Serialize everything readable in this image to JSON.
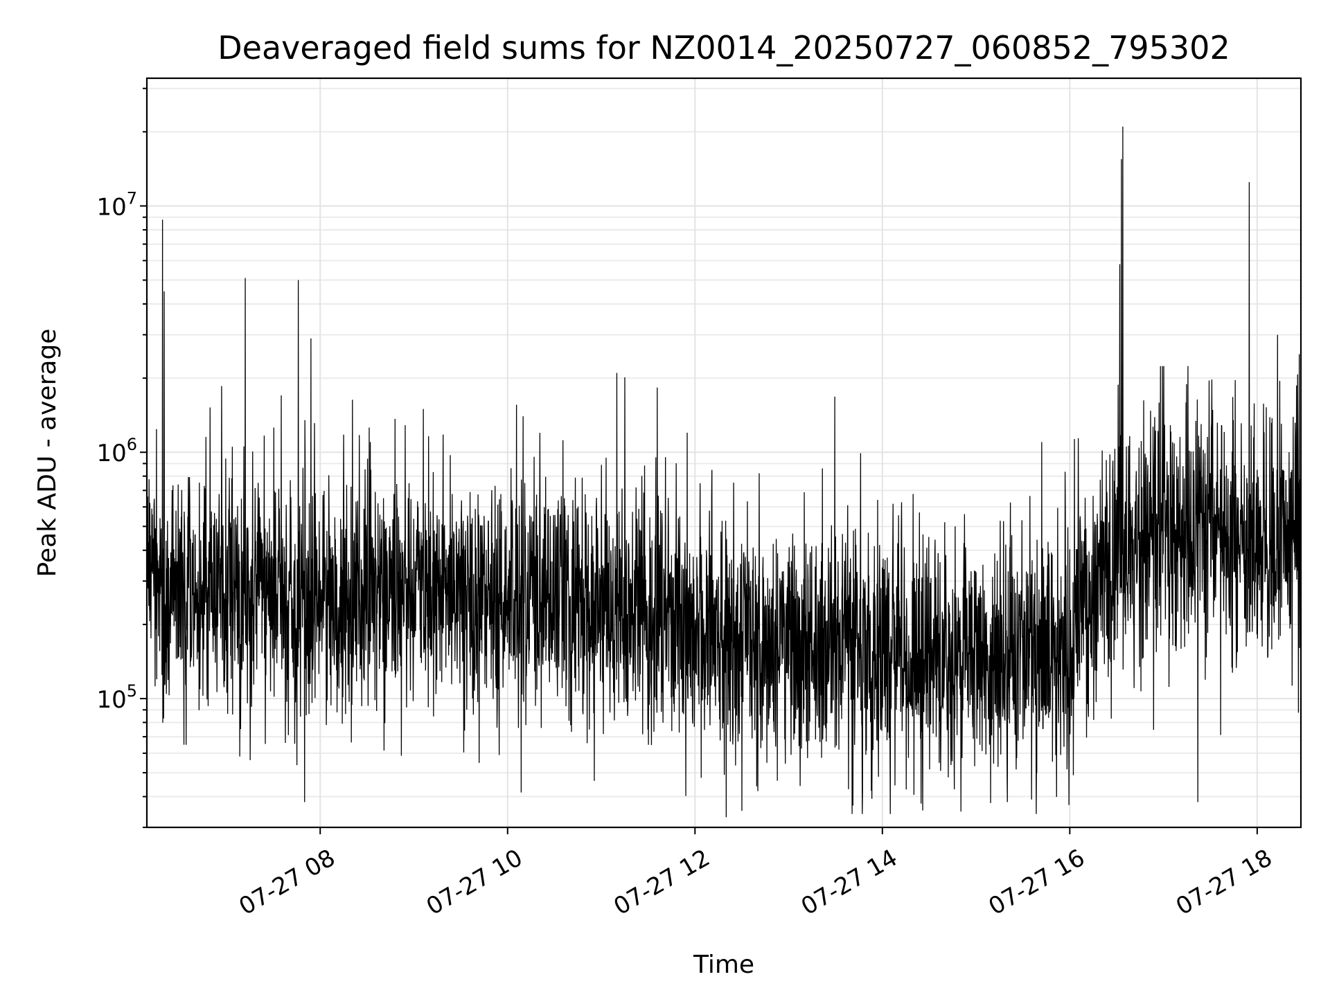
{
  "chart_data": {
    "type": "line",
    "title": "Deaveraged field sums for NZ0014_20250727_060852_795302",
    "xlabel": "Time",
    "ylabel": "Peak ADU - average",
    "xlim": [
      "2025-07-27 06:09",
      "2025-07-27 18:28"
    ],
    "ylim": [
      30000,
      33000000
    ],
    "yscale": "log",
    "grid": true,
    "x_ticks": [
      {
        "value": "2025-07-27 08:00",
        "label": "07-27 08"
      },
      {
        "value": "2025-07-27 10:00",
        "label": "07-27 10"
      },
      {
        "value": "2025-07-27 12:00",
        "label": "07-27 12"
      },
      {
        "value": "2025-07-27 14:00",
        "label": "07-27 14"
      },
      {
        "value": "2025-07-27 16:00",
        "label": "07-27 16"
      },
      {
        "value": "2025-07-27 18:00",
        "label": "07-27 18"
      }
    ],
    "y_ticks": [
      {
        "value": 100000,
        "base": "10",
        "exp": "5"
      },
      {
        "value": 1000000,
        "base": "10",
        "exp": "6"
      },
      {
        "value": 10000000,
        "base": "10",
        "exp": "7"
      }
    ],
    "series": [
      {
        "color": "#000000",
        "baseline": {
          "x": [
            "2025-07-27 06:09",
            "2025-07-27 07:00",
            "2025-07-27 08:00",
            "2025-07-27 09:00",
            "2025-07-27 10:00",
            "2025-07-27 11:00",
            "2025-07-27 12:00",
            "2025-07-27 13:00",
            "2025-07-27 14:00",
            "2025-07-27 15:00",
            "2025-07-27 16:00",
            "2025-07-27 16:30",
            "2025-07-27 17:00",
            "2025-07-27 17:30",
            "2025-07-27 18:00",
            "2025-07-27 18:28"
          ],
          "y": [
            300000,
            270000,
            250000,
            290000,
            250000,
            230000,
            190000,
            165000,
            150000,
            140000,
            160000,
            420000,
            480000,
            460000,
            380000,
            520000
          ]
        },
        "peaks": {
          "x": [
            "2025-07-27 06:19",
            "2025-07-27 06:20",
            "2025-07-27 07:12",
            "2025-07-27 07:46",
            "2025-07-27 07:54",
            "2025-07-27 08:32",
            "2025-07-27 09:06",
            "2025-07-27 10:10",
            "2025-07-27 11:10",
            "2025-07-27 11:55",
            "2025-07-27 15:42",
            "2025-07-27 16:32",
            "2025-07-27 16:33",
            "2025-07-27 16:34",
            "2025-07-27 17:55",
            "2025-07-27 18:13",
            "2025-07-27 18:27"
          ],
          "y": [
            8800000,
            4500000,
            5100000,
            5000000,
            2900000,
            1100000,
            1500000,
            1400000,
            2100000,
            1200000,
            1100000,
            5800000,
            15500000,
            21000000,
            12500000,
            3000000,
            2500000
          ]
        },
        "troughs": {
          "x": [
            "2025-07-27 07:50",
            "2025-07-27 12:20",
            "2025-07-27 12:30",
            "2025-07-27 14:05",
            "2025-07-27 15:20",
            "2025-07-27 17:22"
          ],
          "y": [
            38000,
            33000,
            35000,
            34000,
            38000,
            38000
          ]
        }
      }
    ]
  }
}
